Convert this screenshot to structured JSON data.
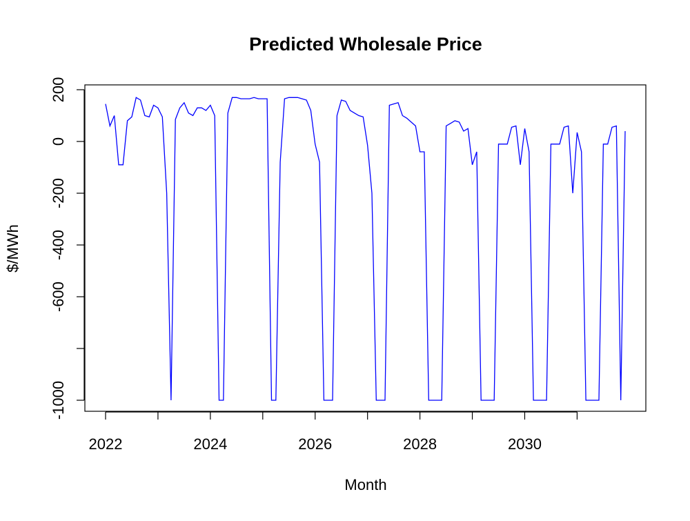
{
  "chart_data": {
    "type": "line",
    "title": "Predicted Wholesale Price",
    "xlabel": "Month",
    "ylabel": "$/MWh",
    "x_axis": "date",
    "xlim": [
      "2022-01",
      "2031-12"
    ],
    "ylim": [
      -1000,
      200
    ],
    "x_ticks": [
      {
        "value": "2022-01",
        "label": "2022"
      },
      {
        "value": "2023-01",
        "label": ""
      },
      {
        "value": "2024-01",
        "label": "2024"
      },
      {
        "value": "2025-01",
        "label": ""
      },
      {
        "value": "2026-01",
        "label": "2026"
      },
      {
        "value": "2027-01",
        "label": ""
      },
      {
        "value": "2028-01",
        "label": "2028"
      },
      {
        "value": "2029-01",
        "label": ""
      },
      {
        "value": "2030-01",
        "label": "2030"
      },
      {
        "value": "2031-01",
        "label": ""
      }
    ],
    "y_ticks": [
      {
        "value": -1000,
        "label": "-1000"
      },
      {
        "value": -800,
        "label": ""
      },
      {
        "value": -600,
        "label": "-600"
      },
      {
        "value": -400,
        "label": "-400"
      },
      {
        "value": -200,
        "label": "-200"
      },
      {
        "value": 0,
        "label": "0"
      },
      {
        "value": 200,
        "label": "200"
      }
    ],
    "grid": false,
    "legend": "none",
    "series": [
      {
        "color": "#0000ff",
        "x": [
          "2022-01",
          "2022-02",
          "2022-03",
          "2022-04",
          "2022-05",
          "2022-06",
          "2022-07",
          "2022-08",
          "2022-09",
          "2022-10",
          "2022-11",
          "2022-12",
          "2023-01",
          "2023-02",
          "2023-03",
          "2023-04",
          "2023-05",
          "2023-06",
          "2023-07",
          "2023-08",
          "2023-09",
          "2023-10",
          "2023-11",
          "2023-12",
          "2024-01",
          "2024-02",
          "2024-03",
          "2024-04",
          "2024-05",
          "2024-06",
          "2024-07",
          "2024-08",
          "2024-09",
          "2024-10",
          "2024-11",
          "2024-12",
          "2025-01",
          "2025-02",
          "2025-03",
          "2025-04",
          "2025-05",
          "2025-06",
          "2025-07",
          "2025-08",
          "2025-09",
          "2025-10",
          "2025-11",
          "2025-12",
          "2026-01",
          "2026-02",
          "2026-03",
          "2026-04",
          "2026-05",
          "2026-06",
          "2026-07",
          "2026-08",
          "2026-09",
          "2026-10",
          "2026-11",
          "2026-12",
          "2027-01",
          "2027-02",
          "2027-03",
          "2027-04",
          "2027-05",
          "2027-06",
          "2027-07",
          "2027-08",
          "2027-09",
          "2027-10",
          "2027-11",
          "2027-12",
          "2028-01",
          "2028-02",
          "2028-03",
          "2028-04",
          "2028-05",
          "2028-06",
          "2028-07",
          "2028-08",
          "2028-09",
          "2028-10",
          "2028-11",
          "2028-12",
          "2029-01",
          "2029-02",
          "2029-03",
          "2029-04",
          "2029-05",
          "2029-06",
          "2029-07",
          "2029-08",
          "2029-09",
          "2029-10",
          "2029-11",
          "2029-12",
          "2030-01",
          "2030-02",
          "2030-03",
          "2030-04",
          "2030-05",
          "2030-06",
          "2030-07",
          "2030-08",
          "2030-09",
          "2030-10",
          "2030-11",
          "2030-12",
          "2031-01",
          "2031-02",
          "2031-03",
          "2031-04",
          "2031-05",
          "2031-06",
          "2031-07",
          "2031-08",
          "2031-09",
          "2031-10",
          "2031-11",
          "2031-12"
        ],
        "y": [
          145,
          60,
          100,
          -90,
          -90,
          80,
          95,
          170,
          160,
          100,
          95,
          140,
          130,
          95,
          -200,
          -1000,
          85,
          130,
          150,
          110,
          100,
          130,
          130,
          120,
          140,
          100,
          -1000,
          -1000,
          110,
          170,
          170,
          165,
          165,
          165,
          170,
          165,
          165,
          165,
          -1000,
          -1000,
          -80,
          165,
          170,
          170,
          170,
          165,
          160,
          120,
          -10,
          -80,
          -1000,
          -1000,
          -1000,
          100,
          160,
          155,
          120,
          110,
          100,
          95,
          -15,
          -200,
          -1000,
          -1000,
          -1000,
          140,
          145,
          150,
          100,
          90,
          75,
          60,
          -40,
          -40,
          -1000,
          -1000,
          -1000,
          -1000,
          60,
          70,
          80,
          75,
          40,
          50,
          -90,
          -40,
          -1000,
          -1000,
          -1000,
          -1000,
          -10,
          -10,
          -10,
          55,
          60,
          -90,
          50,
          -40,
          -1000,
          -1000,
          -1000,
          -1000,
          -10,
          -10,
          -10,
          55,
          60,
          -200,
          35,
          -40,
          -1000,
          -1000,
          -1000,
          -1000,
          -10,
          -10,
          55,
          60,
          -1000,
          40
        ]
      }
    ]
  }
}
